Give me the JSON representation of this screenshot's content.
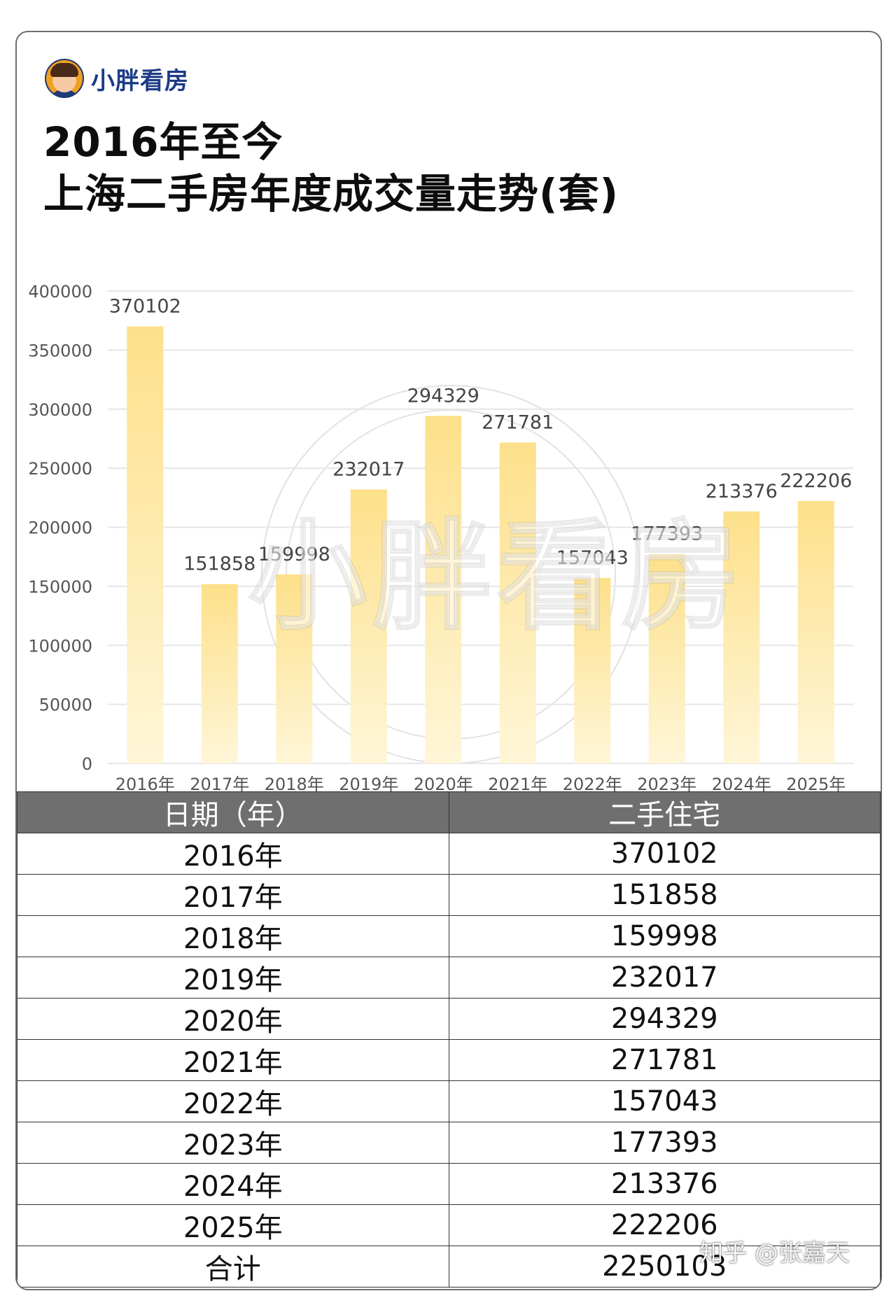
{
  "brand": {
    "name": "小胖看房",
    "logo_icon": "avatar-logo-icon"
  },
  "title_line1": "2016年至今",
  "title_line2": "上海二手房年度成交量走势(套)",
  "watermark": "小胖看房",
  "credit": "知乎 @张嘉天",
  "chart_data": {
    "type": "bar",
    "categories": [
      "2016年",
      "2017年",
      "2018年",
      "2019年",
      "2020年",
      "2021年",
      "2022年",
      "2023年",
      "2024年",
      "2025年"
    ],
    "values": [
      370102,
      151858,
      159998,
      232017,
      294329,
      271781,
      157043,
      177393,
      213376,
      222206
    ],
    "ylim": [
      0,
      400000
    ],
    "yticks": [
      "0",
      "50000",
      "100000",
      "150000",
      "200000",
      "250000",
      "300000",
      "350000",
      "400000"
    ],
    "title": "",
    "xlabel": "",
    "ylabel": "",
    "grid": true,
    "bar_color_top": "#fde08a",
    "bar_color_bottom": "#fff6d8"
  },
  "table": {
    "headers": [
      "日期（年）",
      "二手住宅"
    ],
    "rows": [
      [
        "2016年",
        "370102"
      ],
      [
        "2017年",
        "151858"
      ],
      [
        "2018年",
        "159998"
      ],
      [
        "2019年",
        "232017"
      ],
      [
        "2020年",
        "294329"
      ],
      [
        "2021年",
        "271781"
      ],
      [
        "2022年",
        "157043"
      ],
      [
        "2023年",
        "177393"
      ],
      [
        "2024年",
        "213376"
      ],
      [
        "2025年",
        "222206"
      ],
      [
        "合计",
        "2250103"
      ]
    ]
  }
}
